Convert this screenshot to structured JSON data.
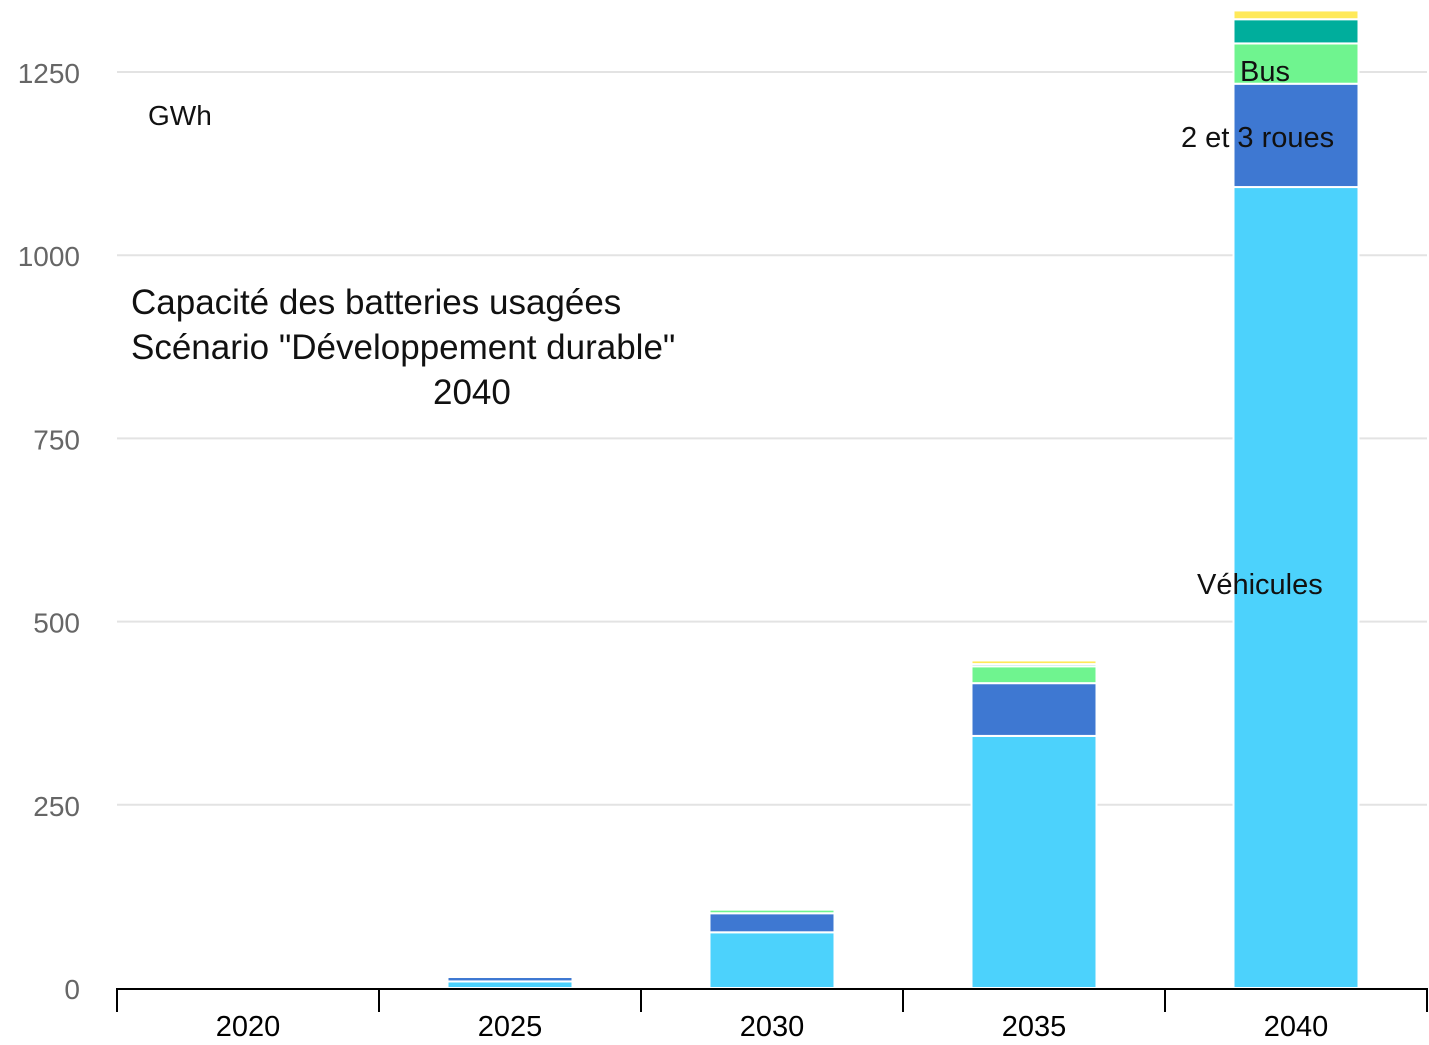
{
  "chart_data": {
    "type": "bar",
    "stacked": true,
    "title": "Capacité des batteries usagées",
    "subtitle": "Scénario \"Développement durable\"",
    "subtitle_year": "2040",
    "unit_label": "GWh",
    "xlabel": "",
    "ylabel": "",
    "ylim": [
      0,
      1250
    ],
    "yticks": [
      "0",
      "250",
      "500",
      "750",
      "1000",
      "1250"
    ],
    "ytick_values": [
      0,
      250,
      500,
      750,
      1000,
      1250
    ],
    "categories": [
      "2020",
      "2025",
      "2030",
      "2035",
      "2040"
    ],
    "grid": true,
    "series": [
      {
        "name": "Véhicules",
        "color": "#4cd2fc",
        "values": [
          0,
          9,
          76,
          344,
          1093
        ]
      },
      {
        "name": "2 et 3 roues",
        "color": "#3e78d2",
        "values": [
          0,
          6,
          26,
          72,
          141
        ]
      },
      {
        "name": "Bus",
        "color": "#6ff48f",
        "values": [
          0,
          1,
          5,
          23,
          55
        ]
      },
      {
        "name": "",
        "color": "#00ae9c",
        "values": [
          0,
          0,
          1,
          3,
          33
        ]
      },
      {
        "name": "",
        "color": "#ffe959",
        "values": [
          0,
          0,
          1,
          5,
          12
        ]
      }
    ],
    "series_labels_on_bar": [
      "Bus",
      "2 et 3 roues",
      "Véhicules"
    ]
  }
}
